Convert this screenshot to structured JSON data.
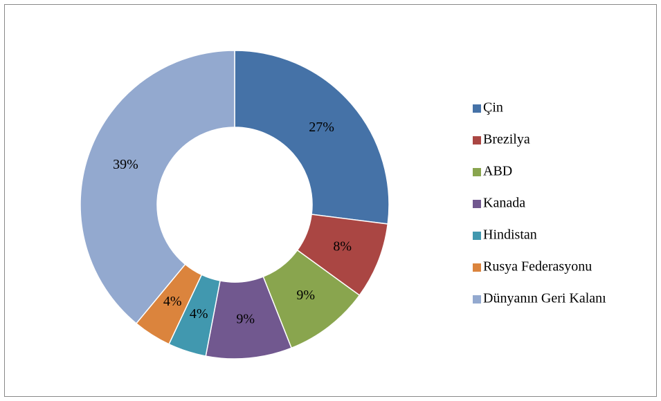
{
  "chart_data": {
    "type": "donut",
    "categories": [
      "Çin",
      "Brezilya",
      "ABD",
      "Kanada",
      "Hindistan",
      "Rusya Federasyonu",
      "Dünyanın Geri Kalanı"
    ],
    "values": [
      27,
      8,
      9,
      9,
      4,
      4,
      39
    ],
    "value_labels": [
      "27%",
      "8%",
      "9%",
      "9%",
      "4%",
      "4%",
      "39%"
    ],
    "colors": [
      "#4572a7",
      "#aa4643",
      "#89a54e",
      "#71588f",
      "#4198af",
      "#db843d",
      "#93a9cf"
    ],
    "legend": "right"
  }
}
